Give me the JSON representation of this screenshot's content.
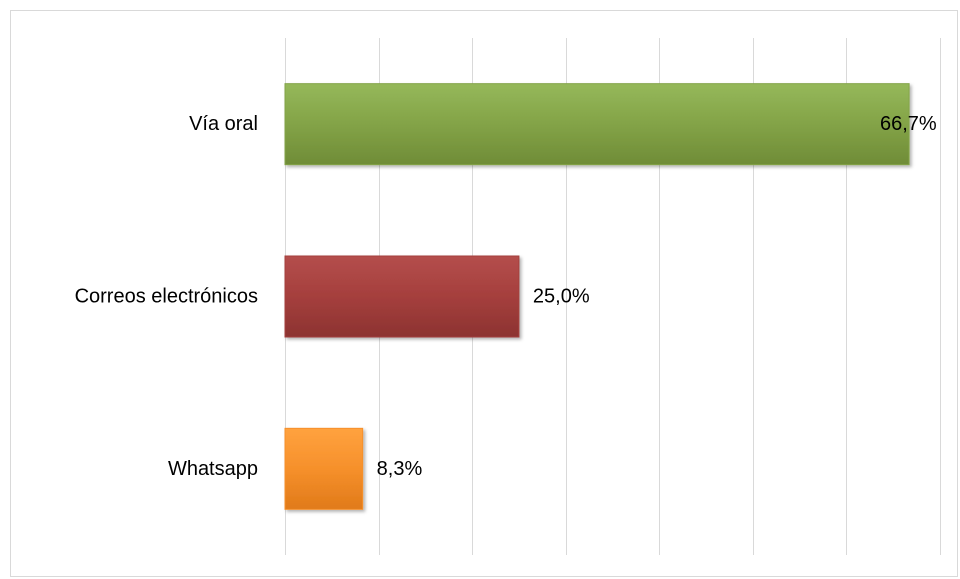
{
  "chart_data": {
    "type": "bar",
    "orientation": "horizontal",
    "categories": [
      "Vía oral",
      "Correos electrónicos",
      "Whatsapp"
    ],
    "values": [
      66.7,
      25.0,
      8.3
    ],
    "value_labels": [
      "66,7%",
      "25,0%",
      "8,3%"
    ],
    "title": "",
    "xlabel": "",
    "ylabel": "",
    "xlim": [
      0,
      70
    ],
    "grid": true,
    "gridline_step": 10,
    "legend": "none",
    "colors": [
      "#83a347",
      "#a53f3d",
      "#f6902b"
    ],
    "gridline_color": "#d9d9d9",
    "border_color": "#d9d9d9"
  }
}
